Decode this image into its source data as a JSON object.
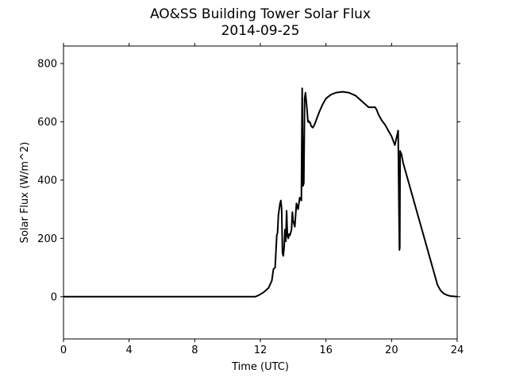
{
  "chart_data": {
    "type": "line",
    "title": "AO&SS Building Tower Solar Flux",
    "subtitle": "2014-09-25",
    "xlabel": "Time (UTC)",
    "ylabel": "Solar Flux (W/m^2)",
    "xlim": [
      0,
      24
    ],
    "ylim": [
      -145,
      860
    ],
    "xticks": [
      0,
      4,
      8,
      12,
      16,
      20,
      24
    ],
    "yticks": [
      0,
      200,
      400,
      600,
      800
    ],
    "grid": false,
    "legend": "none",
    "line_color": "#000000",
    "series": [
      {
        "x": [
          0,
          11.7,
          11.9,
          12.2,
          12.5,
          12.7,
          12.8,
          12.9,
          13.0,
          13.05,
          13.1,
          13.15,
          13.2,
          13.25,
          13.3,
          13.35,
          13.4,
          13.45,
          13.5,
          13.55,
          13.6,
          13.65,
          13.7,
          13.75,
          13.8,
          13.85,
          13.9,
          13.95,
          14.0,
          14.1,
          14.2,
          14.3,
          14.4,
          14.5,
          14.55,
          14.6,
          14.65,
          14.7,
          14.75,
          14.8,
          14.85,
          14.9,
          14.92,
          14.95,
          14.97,
          15.0,
          15.05,
          15.1,
          15.2,
          15.3,
          15.4,
          15.5,
          15.6,
          15.8,
          16.0,
          16.3,
          16.6,
          17.0,
          17.4,
          17.8,
          18.2,
          18.6,
          19.0,
          19.1,
          19.2,
          19.4,
          19.6,
          19.8,
          20.0,
          20.2,
          20.4,
          20.45,
          20.48,
          20.5,
          20.52,
          20.55,
          20.6,
          20.7,
          20.8,
          21.0,
          21.2,
          21.4,
          21.6,
          21.8,
          22.0,
          22.2,
          22.4,
          22.6,
          22.8,
          23.0,
          23.2,
          23.4,
          23.6,
          23.8,
          24.0
        ],
        "values": [
          0,
          0,
          5,
          15,
          30,
          55,
          95,
          100,
          210,
          220,
          280,
          300,
          320,
          330,
          300,
          150,
          140,
          170,
          230,
          190,
          295,
          210,
          200,
          215,
          210,
          220,
          230,
          290,
          260,
          240,
          320,
          300,
          340,
          330,
          715,
          380,
          390,
          680,
          700,
          670,
          640,
          600,
          605,
          600,
          598,
          600,
          595,
          585,
          580,
          590,
          605,
          620,
          635,
          660,
          680,
          693,
          700,
          703,
          700,
          690,
          670,
          650,
          650,
          640,
          625,
          605,
          590,
          570,
          550,
          520,
          570,
          300,
          160,
          170,
          500,
          495,
          490,
          460,
          440,
          400,
          360,
          320,
          280,
          240,
          200,
          160,
          120,
          80,
          40,
          20,
          10,
          5,
          2,
          1,
          0
        ]
      }
    ]
  }
}
